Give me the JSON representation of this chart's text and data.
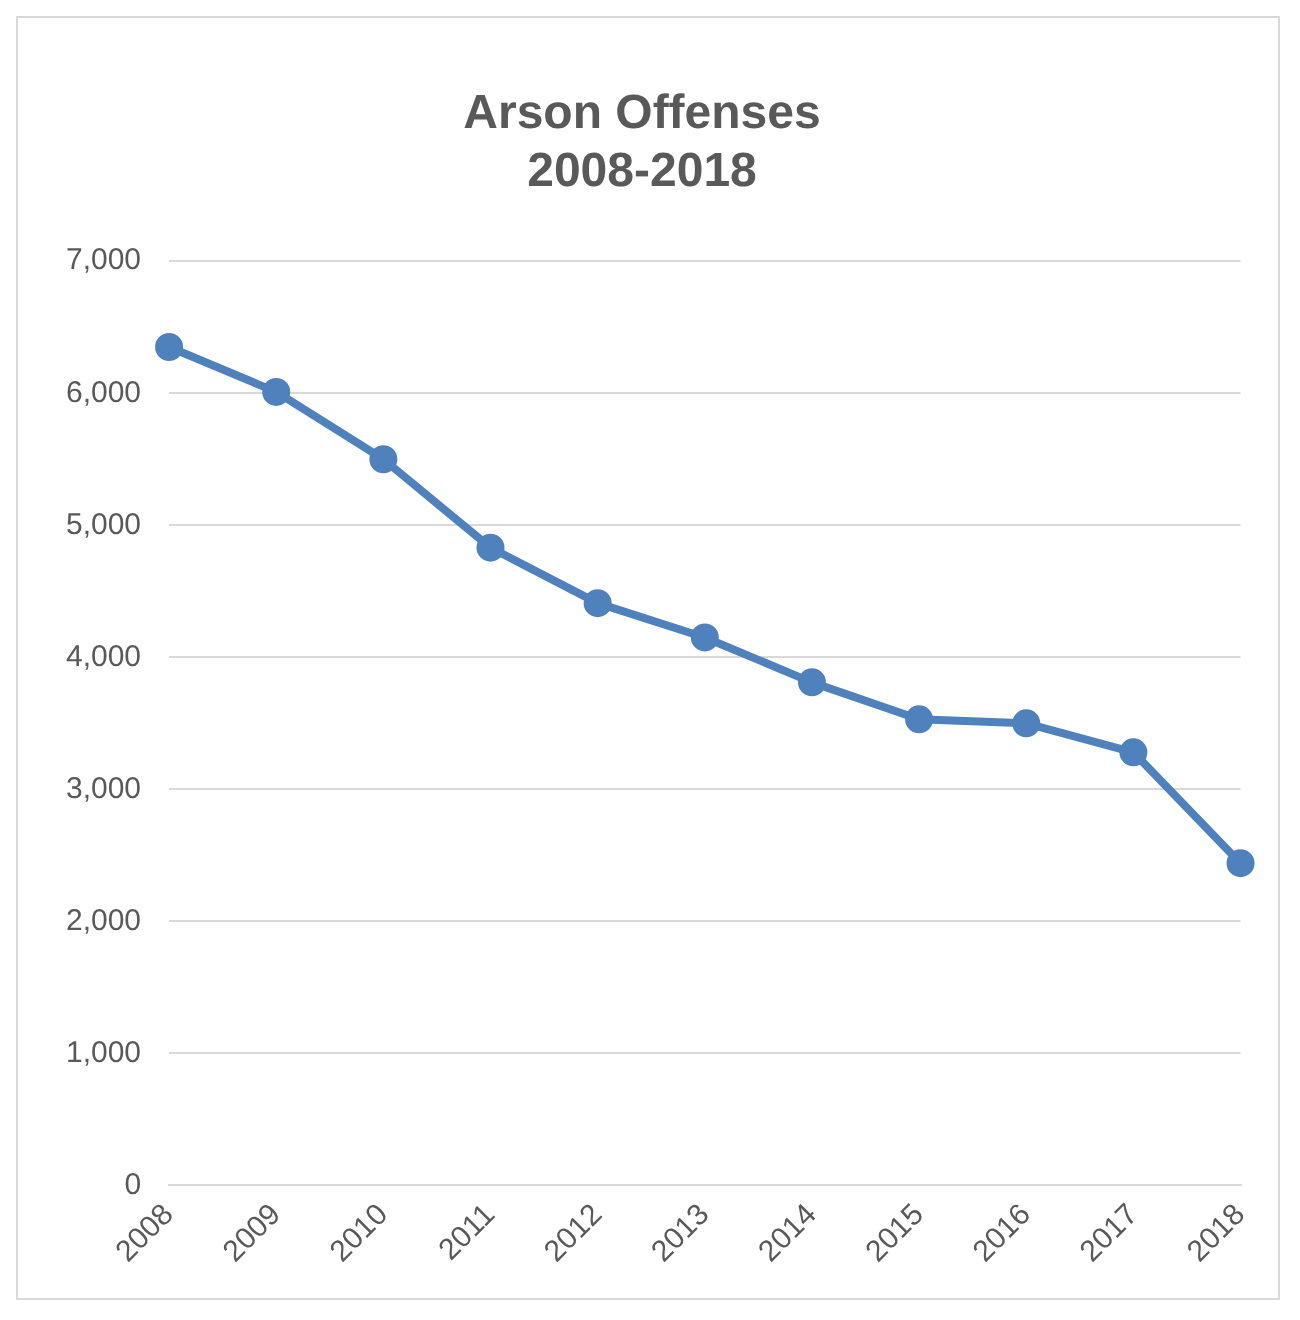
{
  "chart_data": {
    "type": "line",
    "title": "Arson Offenses\n2008-2018",
    "categories": [
      "2008",
      "2009",
      "2010",
      "2011",
      "2012",
      "2013",
      "2014",
      "2015",
      "2016",
      "2017",
      "2018"
    ],
    "series": [
      {
        "color": "#4f81bd",
        "values": [
          6350,
          6010,
          5500,
          4830,
          4410,
          4150,
          3810,
          3530,
          3500,
          3280,
          2440
        ]
      }
    ],
    "ylim": [
      0,
      7000
    ],
    "yticks": [
      {
        "value": 0,
        "label": "0"
      },
      {
        "value": 1000,
        "label": "1,000"
      },
      {
        "value": 2000,
        "label": "2,000"
      },
      {
        "value": 3000,
        "label": "3,000"
      },
      {
        "value": 4000,
        "label": "4,000"
      },
      {
        "value": 5000,
        "label": "5,000"
      },
      {
        "value": 6000,
        "label": "6,000"
      },
      {
        "value": 7000,
        "label": "7,000"
      }
    ],
    "grid": "y",
    "marker": "circle",
    "legend": false
  }
}
